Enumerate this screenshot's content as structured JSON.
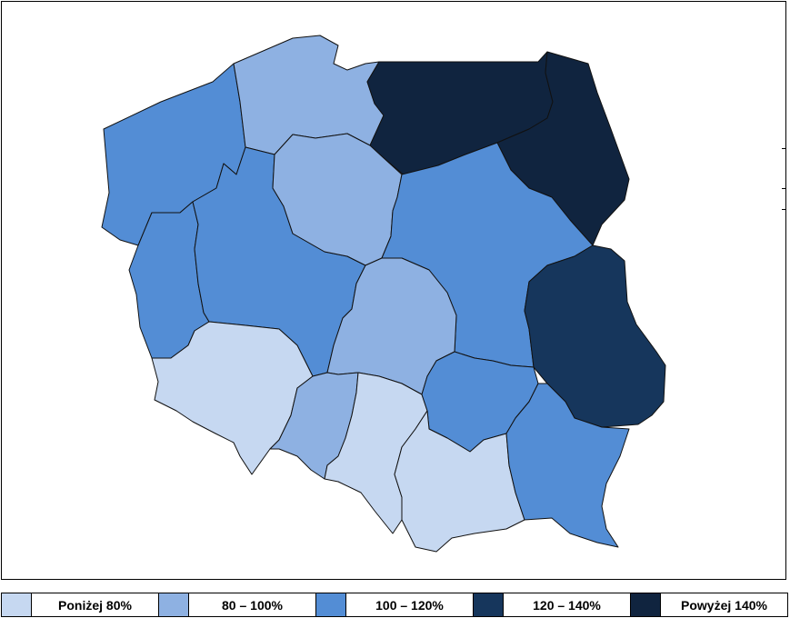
{
  "map": {
    "regions": [
      {
        "id": "zachodniopomorskie",
        "class": 2
      },
      {
        "id": "pomorskie",
        "class": 1
      },
      {
        "id": "warminsko-mazurskie",
        "class": 4
      },
      {
        "id": "podlaskie",
        "class": 4
      },
      {
        "id": "lubuskie",
        "class": 2
      },
      {
        "id": "wielkopolskie",
        "class": 2
      },
      {
        "id": "kujawsko-pomorskie",
        "class": 1
      },
      {
        "id": "mazowieckie",
        "class": 2
      },
      {
        "id": "lodzkie",
        "class": 1
      },
      {
        "id": "lubelskie",
        "class": 3
      },
      {
        "id": "dolnoslaskie",
        "class": 0
      },
      {
        "id": "opolskie",
        "class": 1
      },
      {
        "id": "slaskie",
        "class": 0
      },
      {
        "id": "swietokrzyskie",
        "class": 2
      },
      {
        "id": "malopolskie",
        "class": 0
      },
      {
        "id": "podkarpackie",
        "class": 2
      }
    ]
  },
  "legend": {
    "items": [
      {
        "label": "Poniżej 80%",
        "color": "#c6d8f1"
      },
      {
        "label": "80 – 100%",
        "color": "#8eb1e2"
      },
      {
        "label": "100 – 120%",
        "color": "#538dd5"
      },
      {
        "label": "120 – 140%",
        "color": "#16365c"
      },
      {
        "label": "Powyżej 140%",
        "color": "#10243f"
      }
    ]
  }
}
